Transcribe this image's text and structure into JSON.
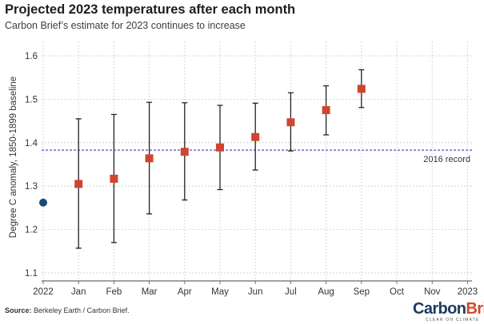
{
  "header": {
    "title": "Projected 2023 temperatures after each month",
    "subtitle": "Carbon Brief’s estimate for 2023 continues to increase"
  },
  "footer": {
    "source_label": "Source:",
    "source_text": "Berkeley Earth / Carbon Brief.",
    "logo_carbon": "Carbon",
    "logo_brief": "Brief",
    "logo_tagline": "CLEAR ON CLIMATE"
  },
  "colors": {
    "marker": "#d0452f",
    "marker_2022": "#1b4a74",
    "record_line": "#3b3bd8",
    "error_bar": "#222222",
    "grid": "#bdbdbd"
  },
  "chart_data": {
    "type": "scatter",
    "ylabel": "Degree C anomaly, 1850-1899 baseline",
    "ylim": [
      1.1,
      1.6
    ],
    "yticks": [
      "1.1",
      "1.2",
      "1.3",
      "1.4",
      "1.5",
      "1.6"
    ],
    "categories": [
      "2022",
      "Jan",
      "Feb",
      "Mar",
      "Apr",
      "May",
      "Jun",
      "Jul",
      "Aug",
      "Sep",
      "Oct",
      "Nov",
      "2023"
    ],
    "grid": "dotted, both axes",
    "reference_line": {
      "label": "2016 record",
      "value": 1.383
    },
    "actual_2022": {
      "x": "2022",
      "value": 1.262
    },
    "series": [
      {
        "points": [
          {
            "x": "Jan",
            "value": 1.305,
            "low": 1.157,
            "high": 1.455
          },
          {
            "x": "Feb",
            "value": 1.317,
            "low": 1.17,
            "high": 1.465
          },
          {
            "x": "Mar",
            "value": 1.364,
            "low": 1.236,
            "high": 1.493
          },
          {
            "x": "Apr",
            "value": 1.379,
            "low": 1.268,
            "high": 1.492
          },
          {
            "x": "May",
            "value": 1.389,
            "low": 1.292,
            "high": 1.486
          },
          {
            "x": "Jun",
            "value": 1.413,
            "low": 1.337,
            "high": 1.491
          },
          {
            "x": "Jul",
            "value": 1.447,
            "low": 1.381,
            "high": 1.515
          },
          {
            "x": "Aug",
            "value": 1.475,
            "low": 1.418,
            "high": 1.531
          },
          {
            "x": "Sep",
            "value": 1.524,
            "low": 1.481,
            "high": 1.568
          }
        ]
      }
    ]
  }
}
